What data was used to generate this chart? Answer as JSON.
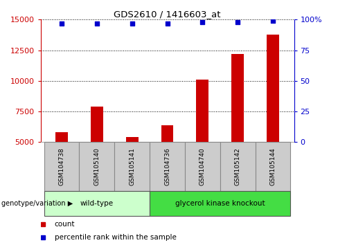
{
  "title": "GDS2610 / 1416603_at",
  "samples": [
    "GSM104738",
    "GSM105140",
    "GSM105141",
    "GSM104736",
    "GSM104740",
    "GSM105142",
    "GSM105144"
  ],
  "counts": [
    5800,
    7900,
    5400,
    6400,
    10100,
    12200,
    13800
  ],
  "percentiles": [
    97,
    97,
    97,
    97,
    98,
    98,
    99
  ],
  "ylim_left": [
    5000,
    15000
  ],
  "ylim_right": [
    0,
    100
  ],
  "yticks_left": [
    5000,
    7500,
    10000,
    12500,
    15000
  ],
  "yticks_right": [
    0,
    25,
    50,
    75,
    100
  ],
  "bar_color": "#cc0000",
  "dot_color": "#0000cc",
  "group_label": "genotype/variation",
  "group_spans": [
    {
      "xstart": -0.5,
      "xend": 2.5,
      "label": "wild-type",
      "color": "#ccffcc"
    },
    {
      "xstart": 2.5,
      "xend": 6.5,
      "label": "glycerol kinase knockout",
      "color": "#44dd44"
    }
  ],
  "legend_items": [
    {
      "label": "count",
      "color": "#cc0000"
    },
    {
      "label": "percentile rank within the sample",
      "color": "#0000cc"
    }
  ],
  "tick_color_left": "#cc0000",
  "tick_color_right": "#0000cc",
  "bar_width": 0.35,
  "sample_box_color": "#cccccc",
  "sample_box_edge": "#888888"
}
